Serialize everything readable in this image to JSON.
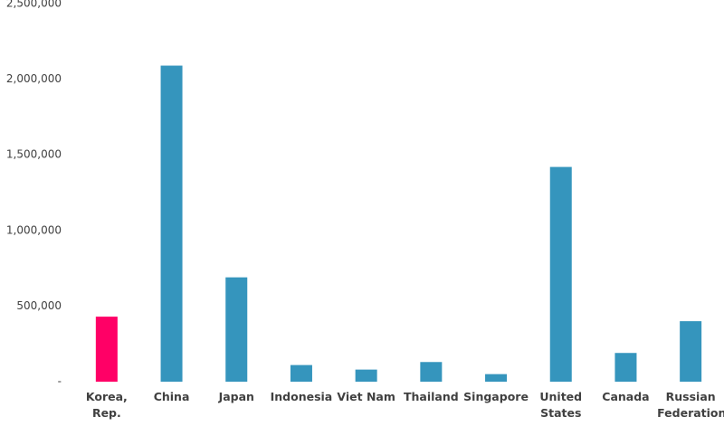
{
  "chart_data": {
    "type": "bar",
    "categories": [
      "Korea,\nRep.",
      "China",
      "Japan",
      "Indonesia",
      "Viet Nam",
      "Thailand",
      "Singapore",
      "United\nStates",
      "Canada",
      "Russian\nFederation"
    ],
    "values": [
      430000,
      2090000,
      690000,
      110000,
      80000,
      130000,
      50000,
      1420000,
      190000,
      400000
    ],
    "colors": [
      "#ff0066",
      "#3595bd",
      "#3595bd",
      "#3595bd",
      "#3595bd",
      "#3595bd",
      "#3595bd",
      "#3595bd",
      "#3595bd",
      "#3595bd"
    ],
    "ylim": [
      0,
      2500000
    ],
    "yticks": [
      {
        "value": 0,
        "label": "-"
      },
      {
        "value": 500000,
        "label": "500,000"
      },
      {
        "value": 1000000,
        "label": "1,000,000"
      },
      {
        "value": 1500000,
        "label": "1,500,000"
      },
      {
        "value": 2000000,
        "label": "2,000,000"
      },
      {
        "value": 2500000,
        "label": "2,500,000"
      }
    ],
    "grid": false
  }
}
